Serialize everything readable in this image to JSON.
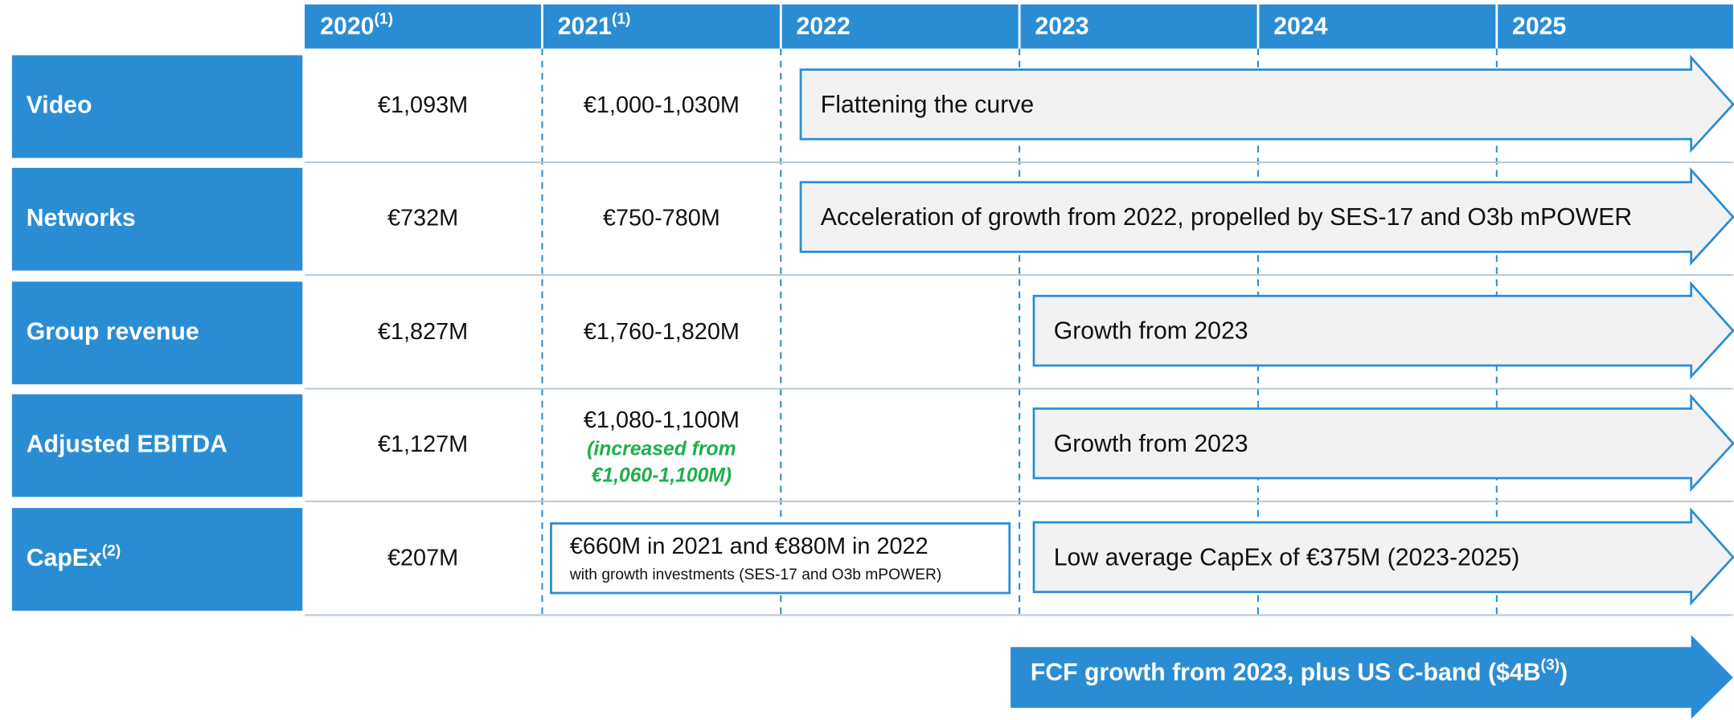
{
  "header": {
    "columns": [
      {
        "text": "2020",
        "sup": "(1)"
      },
      {
        "text": "2021",
        "sup": "(1)"
      },
      {
        "text": "2022"
      },
      {
        "text": "2023"
      },
      {
        "text": "2024"
      },
      {
        "text": "2025"
      }
    ]
  },
  "rows": [
    {
      "label": "Video",
      "y2020": "€1,093M",
      "y2021": "€1,000-1,030M",
      "outlook": "Flattening the curve"
    },
    {
      "label": "Networks",
      "y2020": "€732M",
      "y2021": "€750-780M",
      "outlook": "Acceleration of growth from 2022, propelled by SES-17 and O3b mPOWER"
    },
    {
      "label": "Group revenue",
      "y2020": "€1,827M",
      "y2021": "€1,760-1,820M",
      "outlook": "Growth from 2023"
    },
    {
      "label": "Adjusted EBITDA",
      "y2020": "€1,127M",
      "y2021": "€1,080-1,100M",
      "note": [
        "(increased from",
        "€1,060-1,100M)"
      ],
      "outlook": "Growth from 2023"
    },
    {
      "label": "CapEx",
      "sup": "(2)",
      "y2020": "€207M",
      "box": {
        "main": "€660M in 2021 and €880M in 2022",
        "sub": "with growth investments (SES-17 and O3b mPOWER)"
      },
      "outlook": "Low average CapEx of €375M (2023-2025)"
    }
  ],
  "footer": {
    "text": "FCF growth from 2023, plus US C-band ($4B",
    "sup": "(3)",
    "tail": ")"
  }
}
